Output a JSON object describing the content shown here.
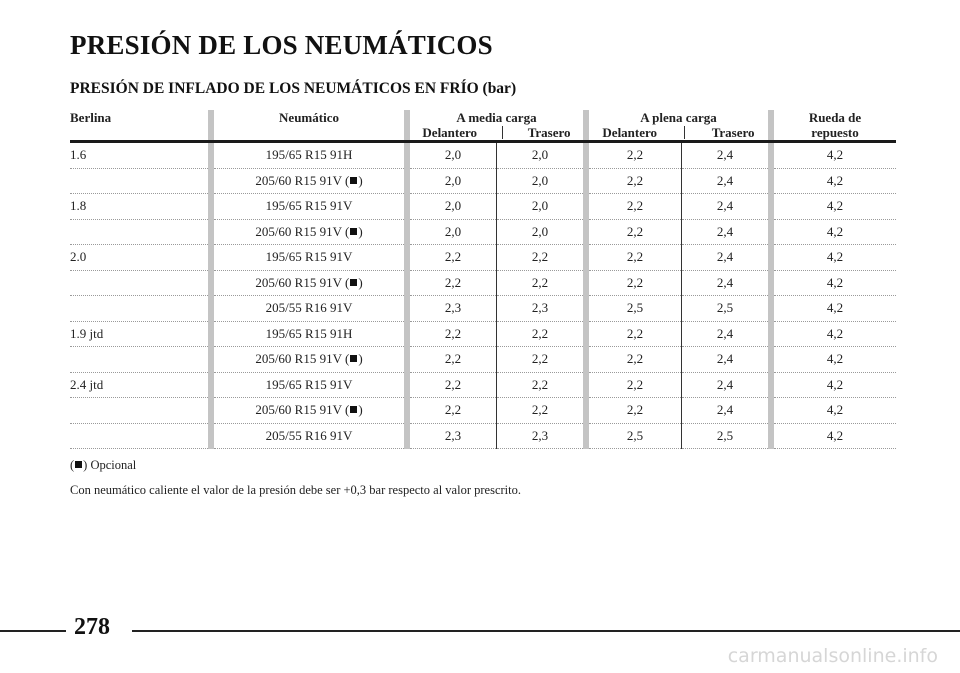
{
  "page": {
    "title": "PRESIÓN DE LOS NEUMÁTICOS",
    "section_title": "PRESIÓN DE INFLADO DE LOS NEUMÁTICOS EN FRÍO (bar)",
    "page_number": "278",
    "watermark": "carmanualsonline.info"
  },
  "table": {
    "headers": {
      "berlina": "Berlina",
      "neumatico": "Neumático",
      "media_carga": "A media carga",
      "plena_carga": "A plena carga",
      "delantero": "Delantero",
      "trasero": "Trasero",
      "rueda_l1": "Rueda de",
      "rueda_l2": "repuesto"
    },
    "rows": [
      {
        "model": "1.6",
        "tyre": "195/65 R15 91H",
        "optional": false,
        "mf": "2,0",
        "mr": "2,0",
        "pf": "2,2",
        "pr": "2,4",
        "spare": "4,2"
      },
      {
        "model": "",
        "tyre": "205/60 R15 91V (",
        "optional": true,
        "mf": "2,0",
        "mr": "2,0",
        "pf": "2,2",
        "pr": "2,4",
        "spare": "4,2"
      },
      {
        "model": "1.8",
        "tyre": "195/65 R15 91V",
        "optional": false,
        "mf": "2,0",
        "mr": "2,0",
        "pf": "2,2",
        "pr": "2,4",
        "spare": "4,2"
      },
      {
        "model": "",
        "tyre": "205/60 R15 91V (",
        "optional": true,
        "mf": "2,0",
        "mr": "2,0",
        "pf": "2,2",
        "pr": "2,4",
        "spare": "4,2"
      },
      {
        "model": "2.0",
        "tyre": "195/65 R15 91V",
        "optional": false,
        "mf": "2,2",
        "mr": "2,2",
        "pf": "2,2",
        "pr": "2,4",
        "spare": "4,2"
      },
      {
        "model": "",
        "tyre": "205/60 R15 91V (",
        "optional": true,
        "mf": "2,2",
        "mr": "2,2",
        "pf": "2,2",
        "pr": "2,4",
        "spare": "4,2"
      },
      {
        "model": "",
        "tyre": "205/55 R16 91V",
        "optional": false,
        "mf": "2,3",
        "mr": "2,3",
        "pf": "2,5",
        "pr": "2,5",
        "spare": "4,2"
      },
      {
        "model": "1.9 jtd",
        "tyre": "195/65 R15 91H",
        "optional": false,
        "mf": "2,2",
        "mr": "2,2",
        "pf": "2,2",
        "pr": "2,4",
        "spare": "4,2"
      },
      {
        "model": "",
        "tyre": "205/60 R15 91V (",
        "optional": true,
        "mf": "2,2",
        "mr": "2,2",
        "pf": "2,2",
        "pr": "2,4",
        "spare": "4,2"
      },
      {
        "model": "2.4 jtd",
        "tyre": "195/65 R15 91V",
        "optional": false,
        "mf": "2,2",
        "mr": "2,2",
        "pf": "2,2",
        "pr": "2,4",
        "spare": "4,2"
      },
      {
        "model": "",
        "tyre": "205/60 R15 91V (",
        "optional": true,
        "mf": "2,2",
        "mr": "2,2",
        "pf": "2,2",
        "pr": "2,4",
        "spare": "4,2"
      },
      {
        "model": "",
        "tyre": "205/55 R16 91V",
        "optional": false,
        "mf": "2,3",
        "mr": "2,3",
        "pf": "2,5",
        "pr": "2,5",
        "spare": "4,2"
      }
    ]
  },
  "footnote": {
    "open": "(",
    "text": ") Opcional"
  },
  "note": "Con neumático caliente el valor de la presión debe ser +0,3 bar respecto al valor prescrito."
}
